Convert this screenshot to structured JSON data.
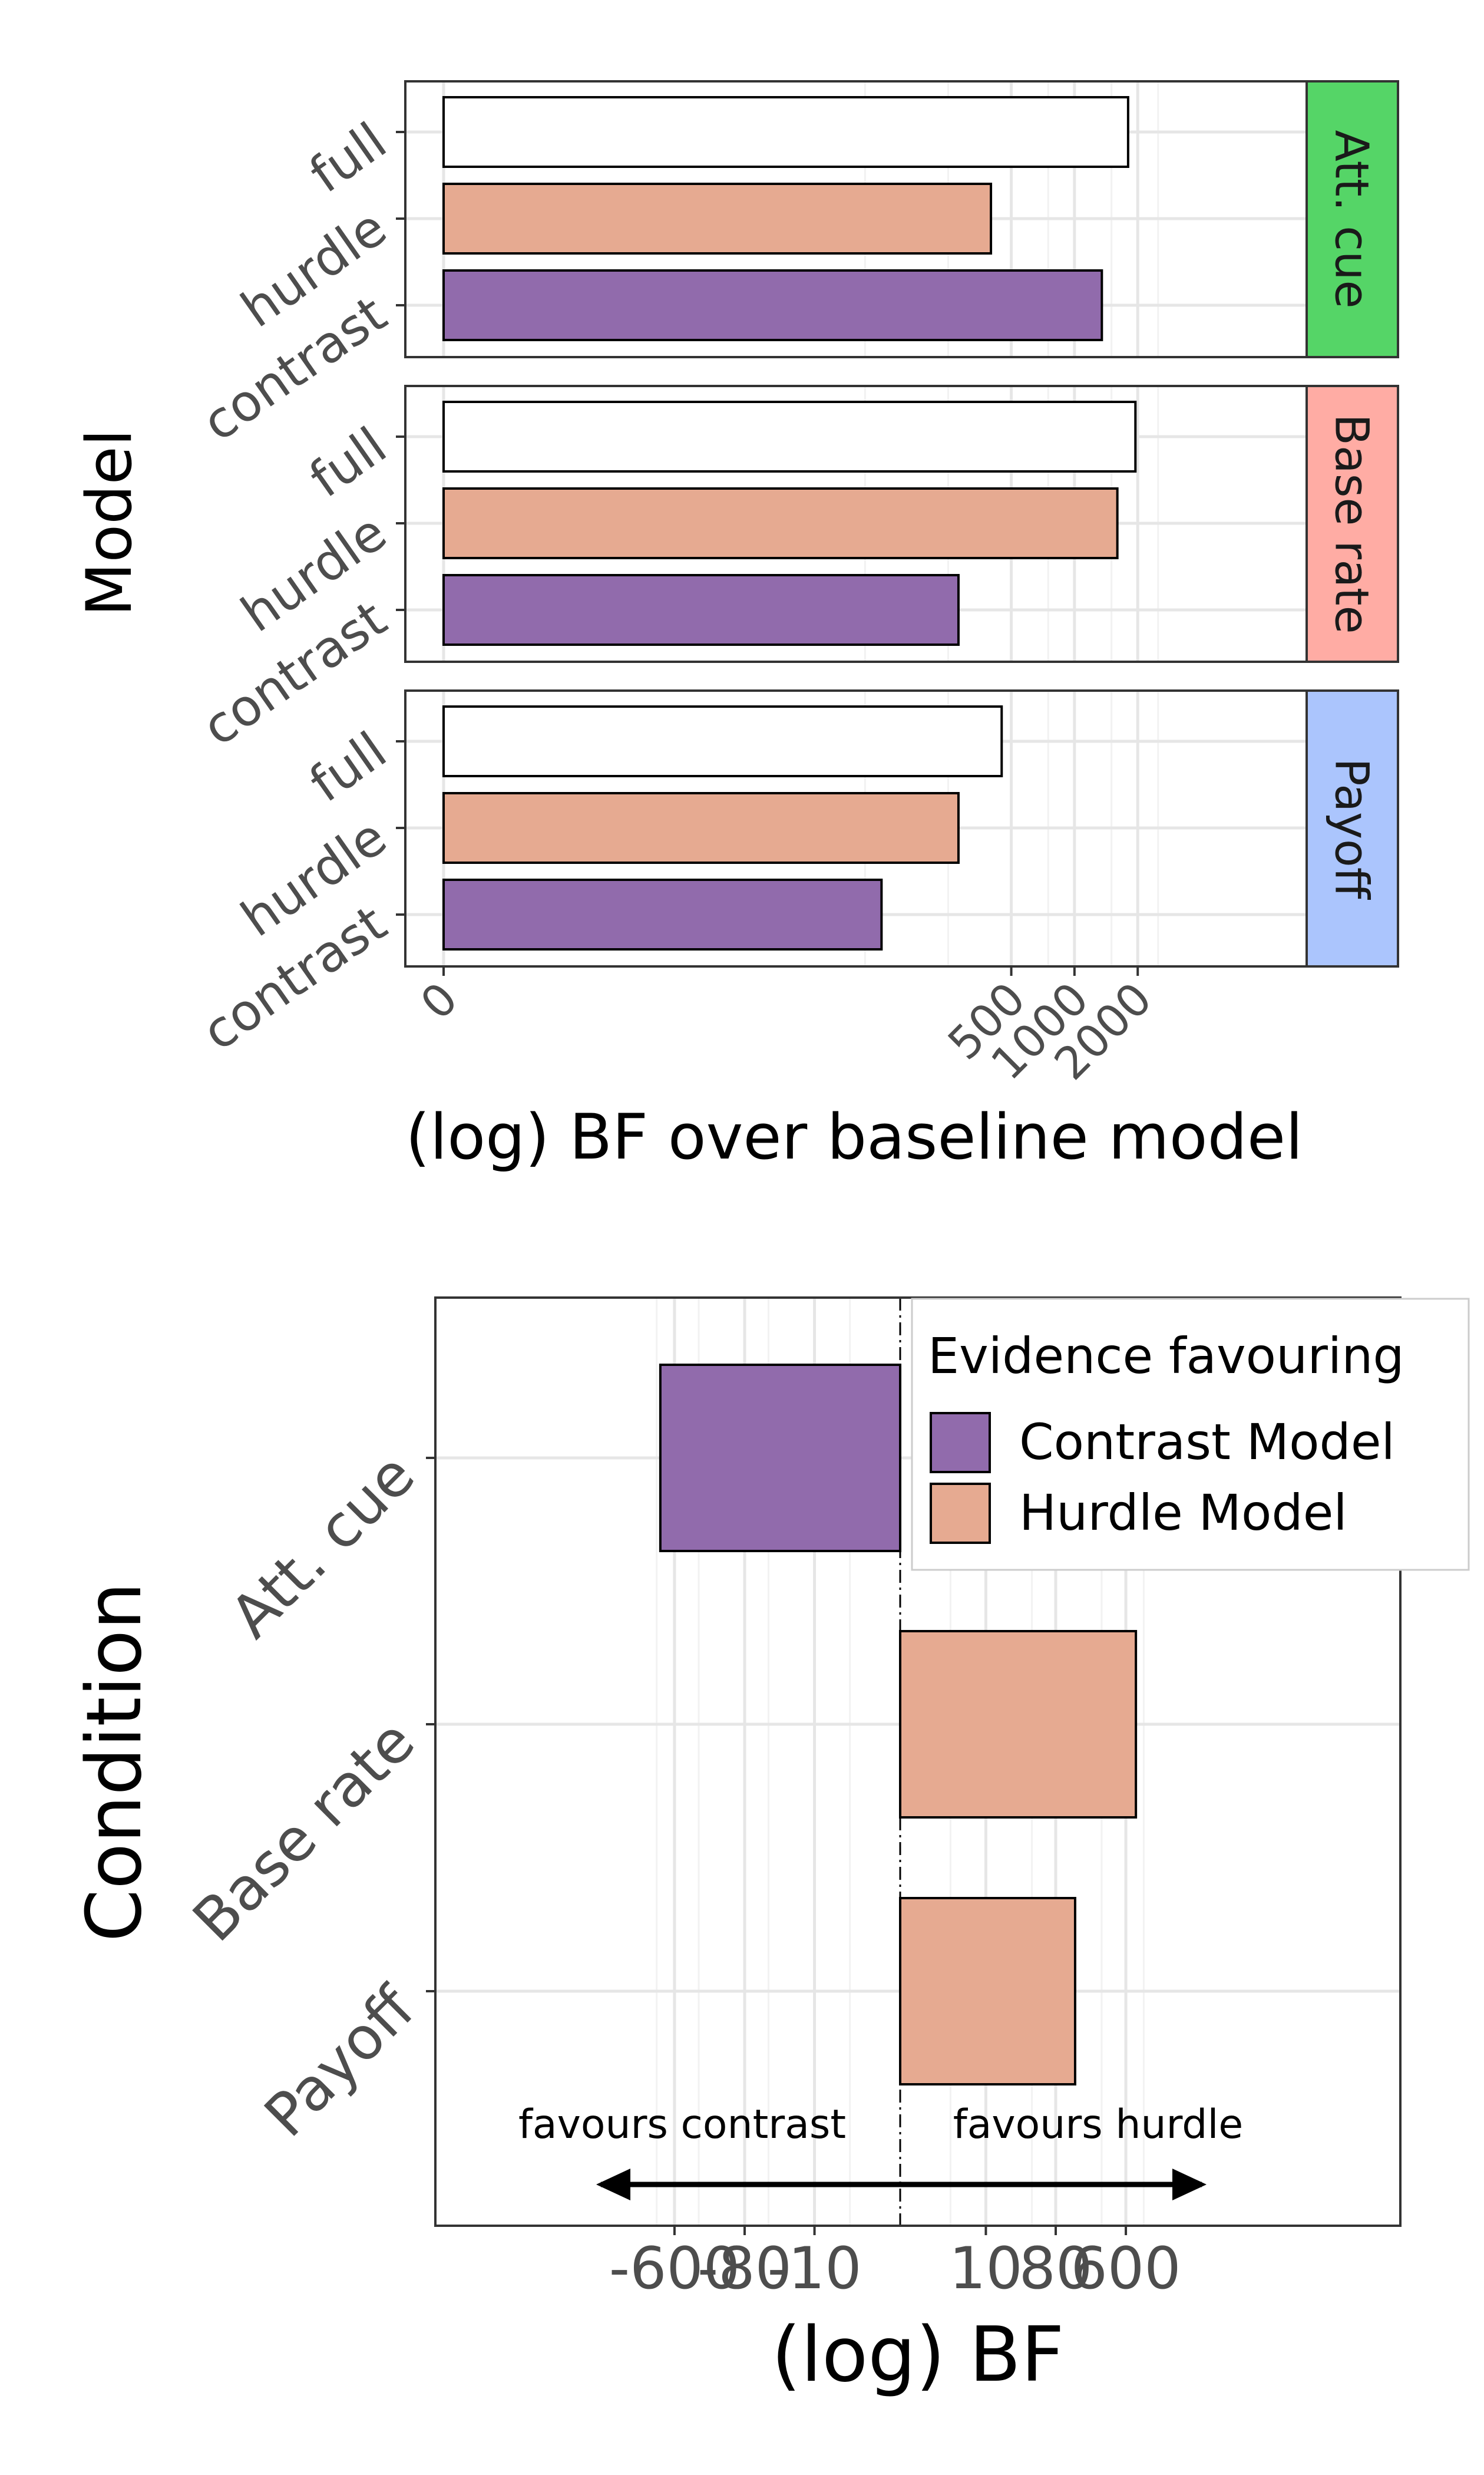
{
  "chart_data": [
    {
      "type": "bar",
      "orientation": "horizontal",
      "xlabel": "(log) BF over baseline model",
      "ylabel": "Model",
      "x_scale": "pseudo-log",
      "x_ticks": [
        0,
        500,
        1000,
        2000
      ],
      "xlim": [
        -50,
        2800
      ],
      "grid": true,
      "categories": [
        "full",
        "hurdle",
        "contrast"
      ],
      "colors": {
        "full": "#ffffff",
        "hurdle": "#e6aa91",
        "contrast": "#916bac"
      },
      "facets": [
        {
          "label": "Att. cue",
          "strip_color": "#55d567",
          "values": {
            "full": 1800,
            "hurdle": 400,
            "contrast": 1350
          }
        },
        {
          "label": "Base rate",
          "strip_color": "#ffaca4",
          "values": {
            "full": 1950,
            "hurdle": 1600,
            "contrast": 280
          }
        },
        {
          "label": "Payoff",
          "strip_color": "#abc5fd",
          "values": {
            "full": 450,
            "hurdle": 280,
            "contrast": 120
          }
        }
      ]
    },
    {
      "type": "bar",
      "orientation": "horizontal",
      "xlabel": "(log) BF",
      "ylabel": "Condition",
      "x_scale": "symmetric-log",
      "x_ticks": [
        -600,
        -80,
        -10,
        10,
        80,
        600
      ],
      "x_tick_labels": [
        "-600",
        "-80",
        "-10",
        "10",
        "80",
        "600"
      ],
      "xlim": [
        -1200,
        1200
      ],
      "grid": true,
      "categories": [
        "Att. cue",
        "Base rate",
        "Payoff"
      ],
      "values": [
        -900,
        800,
        140
      ],
      "favours": [
        "contrast",
        "hurdle",
        "hurdle"
      ],
      "legend": {
        "title": "Evidence favouring",
        "position": "top-right",
        "entries": [
          {
            "label": "Contrast Model",
            "color": "#916bac"
          },
          {
            "label": "Hurdle Model",
            "color": "#e6aa91"
          }
        ]
      },
      "annotations": {
        "left_text": "favours contrast",
        "right_text": "favours hurdle",
        "arrow": {
          "from": -100,
          "to": 100
        }
      }
    }
  ]
}
